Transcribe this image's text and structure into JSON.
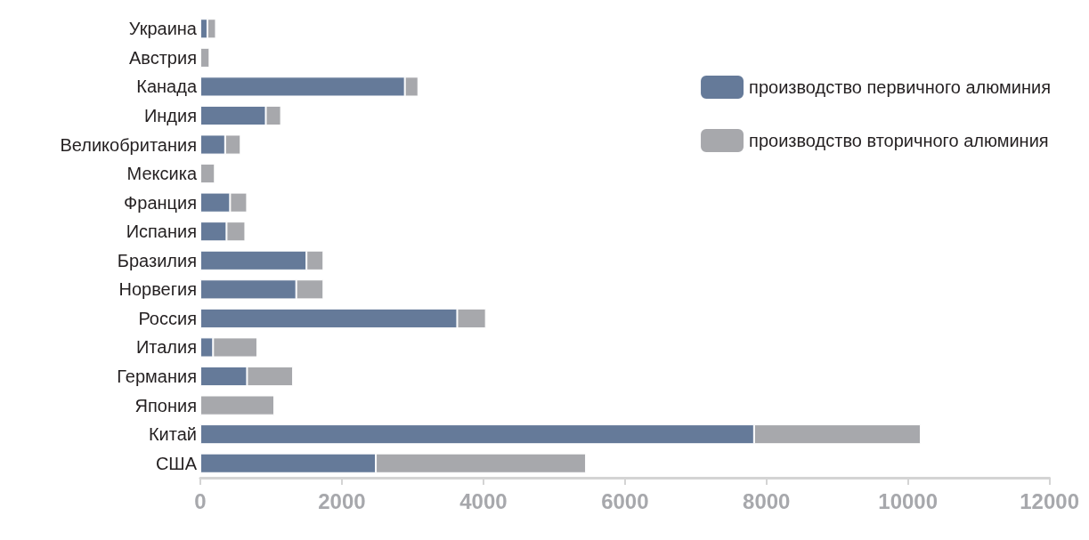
{
  "chart_data": {
    "type": "bar",
    "orientation": "horizontal",
    "stacked": true,
    "categories": [
      "Украина",
      "Австрия",
      "Канада",
      "Индия",
      "Великобритания",
      "Мексика",
      "Франция",
      "Испания",
      "Бразилия",
      "Норвегия",
      "Россия",
      "Италия",
      "Германия",
      "Япония",
      "Китай",
      "США"
    ],
    "series": [
      {
        "name": "производство первичного алюминия",
        "color": "#657a99",
        "values": [
          100,
          0,
          2890,
          925,
          350,
          0,
          420,
          370,
          1500,
          1355,
          3630,
          180,
          660,
          0,
          7825,
          2480
        ]
      },
      {
        "name": "производство вторичного алюминия",
        "color": "#a7a8ac",
        "values": [
          120,
          130,
          190,
          215,
          220,
          205,
          240,
          265,
          240,
          385,
          405,
          625,
          650,
          1045,
          2355,
          2970
        ]
      }
    ],
    "xlim": [
      0,
      12000
    ],
    "xticks": [
      0,
      2000,
      4000,
      6000,
      8000,
      10000,
      12000
    ],
    "grid": false,
    "legend": "top right"
  }
}
